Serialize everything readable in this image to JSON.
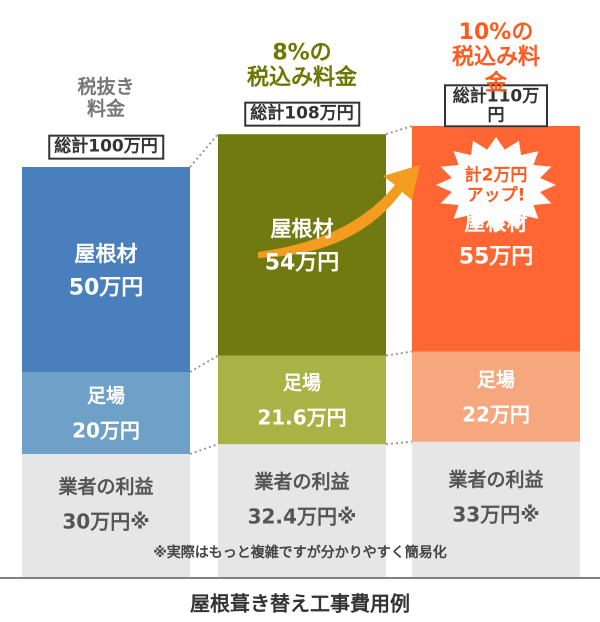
{
  "chart_data": {
    "type": "stacked_bar",
    "title": "屋根葺き替え工事費用例",
    "categories": [
      "税抜き\n料金",
      "8%の\n税込み料金",
      "10%の\n税込み料金"
    ],
    "category_colors": [
      "#777777",
      "#6b7800",
      "#ff5a1f"
    ],
    "totals": [
      100,
      108,
      110
    ],
    "total_labels": [
      "総計100万円",
      "総計108万円",
      "総計110万円"
    ],
    "series": [
      {
        "name": "屋根材",
        "colors": [
          "#4a7fbd",
          "#717a10",
          "#ff6633"
        ],
        "values": [
          50,
          54,
          55
        ],
        "value_labels": [
          "50万円",
          "54万円",
          "55万円"
        ]
      },
      {
        "name": "足場",
        "colors": [
          "#6fa0c8",
          "#a9b244",
          "#f7a77e"
        ],
        "values": [
          20,
          21.6,
          22
        ],
        "value_labels": [
          "20万円",
          "21.6万円",
          "22万円"
        ]
      },
      {
        "name": "業者の利益",
        "colors": [
          "#e6e6e6",
          "#e6e6e6",
          "#e6e6e6"
        ],
        "values": [
          30,
          32.4,
          33
        ],
        "value_labels": [
          "30万円※",
          "32.4万円※",
          "33万円※"
        ]
      }
    ],
    "annotation": "計2万円\nアップ!",
    "note": "※実際はもっと複雑ですが分かりやすく簡易化"
  }
}
